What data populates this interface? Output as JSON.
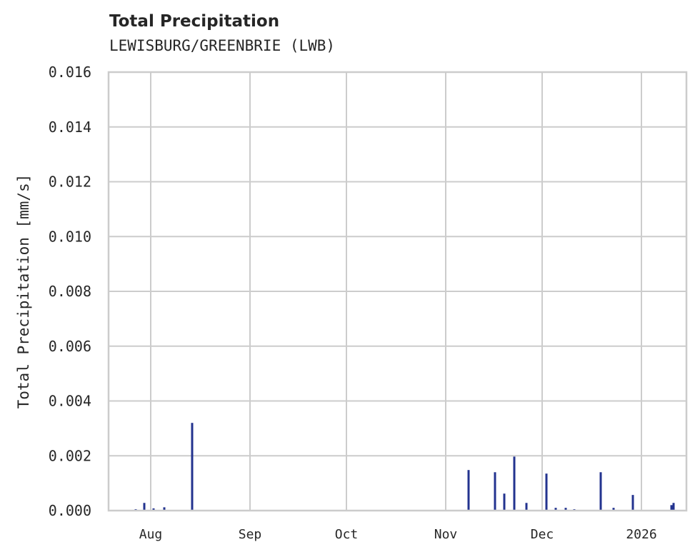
{
  "chart": {
    "title": "Total Precipitation",
    "subtitle": "LEWISBURG/GREENBRIE (LWB)",
    "ylabel": "Total Precipitation [mm/s]",
    "bar_color": "#23338f",
    "grid_color": "#cccccc"
  },
  "chart_data": {
    "type": "bar",
    "title": "Total Precipitation",
    "subtitle": "LEWISBURG/GREENBRIE (LWB)",
    "xlabel": "",
    "ylabel": "Total Precipitation [mm/s]",
    "ylim": [
      0,
      0.016
    ],
    "yticks": [
      "0.000",
      "0.002",
      "0.004",
      "0.006",
      "0.008",
      "0.010",
      "0.012",
      "0.014",
      "0.016"
    ],
    "xticks": [
      "Aug",
      "Sep",
      "Oct",
      "Nov",
      "Dec",
      "2026"
    ],
    "grid": true,
    "series": [
      {
        "name": "Total Precipitation",
        "points": [
          {
            "x": "Jul 28",
            "y": 5e-05
          },
          {
            "x": "Jul 31",
            "y": 0.00028
          },
          {
            "x": "Aug 3",
            "y": 8e-05
          },
          {
            "x": "Aug 6",
            "y": 0.00012
          },
          {
            "x": "Aug 14",
            "y": 0.0032
          },
          {
            "x": "Nov 7",
            "y": 0.00148
          },
          {
            "x": "Nov 15",
            "y": 0.0014
          },
          {
            "x": "Nov 18",
            "y": 0.00062
          },
          {
            "x": "Nov 21",
            "y": 0.00197
          },
          {
            "x": "Nov 25",
            "y": 0.00028
          },
          {
            "x": "Dec 2",
            "y": 0.00135
          },
          {
            "x": "Dec 5",
            "y": 0.0001
          },
          {
            "x": "Dec 8",
            "y": 0.0001
          },
          {
            "x": "Dec 11",
            "y": 5e-05
          },
          {
            "x": "Dec 19",
            "y": 0.0014
          },
          {
            "x": "Dec 23",
            "y": 0.0001
          },
          {
            "x": "Dec 29",
            "y": 0.00057
          },
          {
            "x": "Jan 9",
            "y": 0.0002
          },
          {
            "x": "Jan 10",
            "y": 0.00028
          }
        ]
      }
    ]
  }
}
